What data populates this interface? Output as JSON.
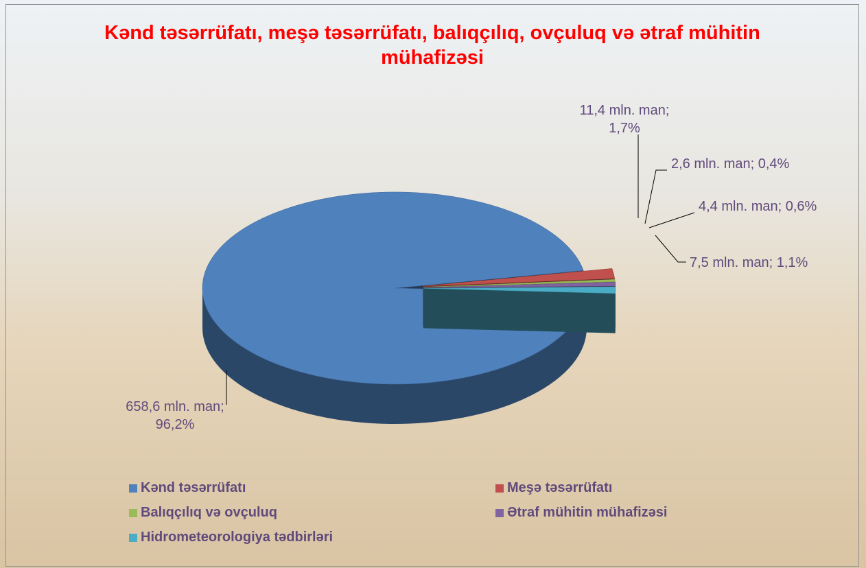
{
  "chart_data": {
    "type": "pie",
    "title": "Kənd təsərrüfatı, meşə təsərrüfatı, balıqçılıq, ovçuluq və ətraf mühitin mühafizəsi",
    "categories": [
      "Kənd təsərrüfatı",
      "Meşə təsərrüfatı",
      "Balıqçılıq və ovçuluq",
      "Ətraf mühitin mühafizəsi",
      "Hidrometeorologiya tədbirləri"
    ],
    "values": [
      658.6,
      11.4,
      2.6,
      4.4,
      7.5
    ],
    "value_labels": [
      "658,6 mln. man; 96,2%",
      "11,4 mln. man; 1,7%",
      "2,6 mln. man; 0,4%",
      "4,4 mln. man; 0,6%",
      "7,5 mln. man; 1,1%"
    ],
    "colors": [
      "#4f81bd",
      "#c0504d",
      "#9bbb59",
      "#8064a2",
      "#4bacc6"
    ],
    "legend": "bottom"
  }
}
